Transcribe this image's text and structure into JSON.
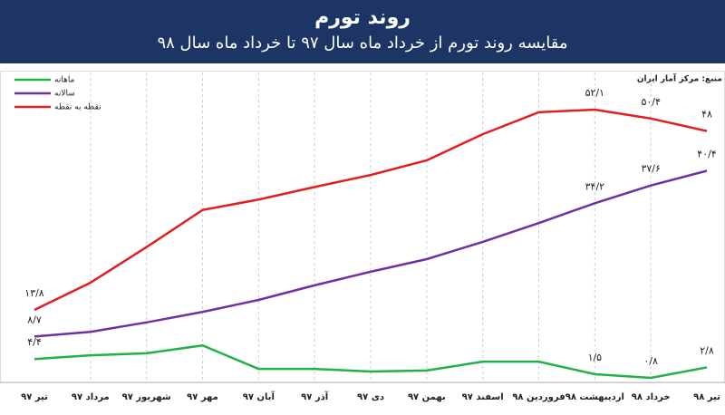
{
  "chart_data": {
    "type": "line",
    "title": "روند تورم",
    "subtitle": "مقایسه روند تورم از خرداد ماه سال ۹۷ تا خرداد ماه سال ۹۸",
    "source": "منبع: مرکز آمار ایران",
    "categories": [
      "تیر ۹۷",
      "مرداد ۹۷",
      "شهریور ۹۷",
      "مهر ۹۷",
      "آبان ۹۷",
      "آذر ۹۷",
      "دی ۹۷",
      "بهمن ۹۷",
      "اسفند ۹۷",
      "فروردین ۹۸",
      "اردیبهشت ۹۸",
      "خرداد ۹۸",
      "تیر ۹۸"
    ],
    "ylim": [
      0,
      60
    ],
    "series": [
      {
        "name": "ماهانه",
        "color": "#22b04b",
        "values": [
          4.4,
          5.1,
          5.5,
          7.0,
          2.5,
          2.5,
          2.0,
          2.2,
          3.9,
          3.9,
          1.5,
          0.8,
          2.8
        ],
        "value_labels": [
          "۴/۴",
          null,
          null,
          null,
          null,
          null,
          null,
          null,
          null,
          null,
          "۱/۵",
          "۰/۸",
          "۲/۸"
        ]
      },
      {
        "name": "سالانه",
        "color": "#7030a0",
        "values": [
          8.7,
          9.6,
          11.4,
          13.4,
          15.7,
          18.5,
          21.1,
          23.5,
          26.8,
          30.4,
          34.2,
          37.6,
          40.4
        ],
        "value_labels": [
          "۸/۷",
          null,
          null,
          null,
          null,
          null,
          null,
          null,
          null,
          null,
          "۳۴/۲",
          "۳۷/۶",
          "۴۰/۴"
        ]
      },
      {
        "name": "نقطه به نقطه",
        "color": "#e02020",
        "values": [
          13.8,
          19.0,
          25.8,
          32.9,
          34.9,
          37.3,
          39.6,
          42.4,
          47.4,
          51.6,
          52.1,
          50.4,
          48
        ],
        "value_labels": [
          "۱۳/۸",
          null,
          null,
          null,
          null,
          null,
          null,
          null,
          null,
          null,
          "۵۲/۱",
          "۵۰/۴",
          "۴۸"
        ]
      }
    ],
    "grid": true
  }
}
